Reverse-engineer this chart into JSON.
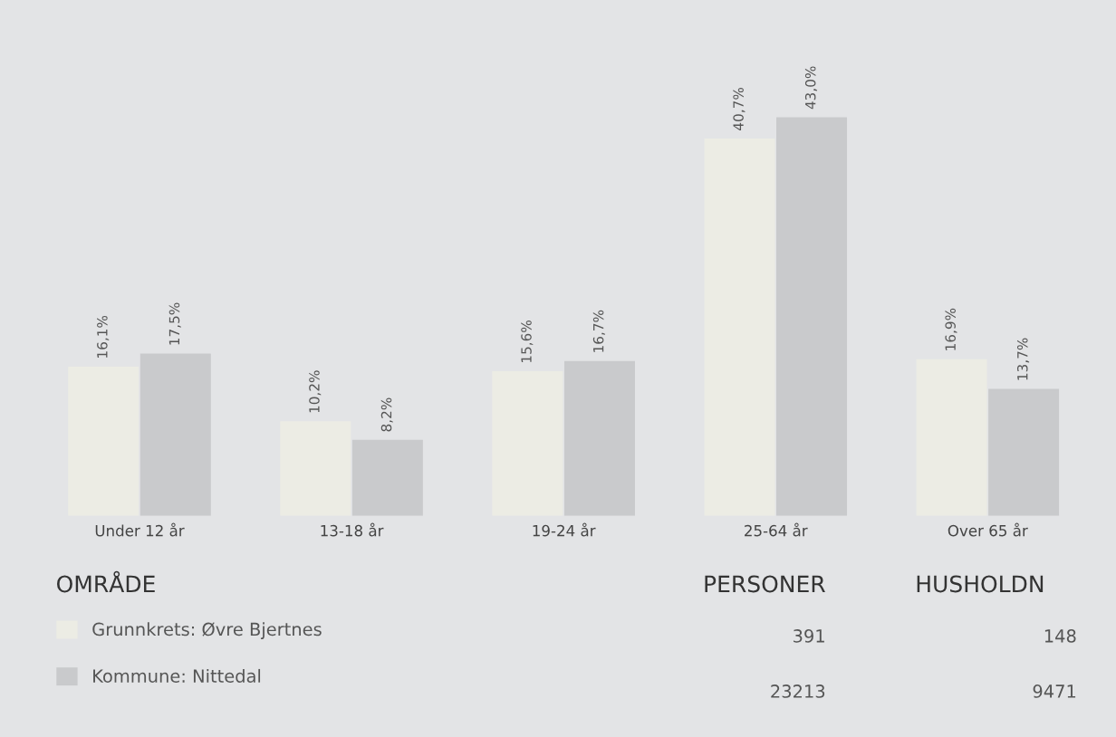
{
  "chart_data": {
    "type": "bar",
    "categories": [
      "Under 12 år",
      "13-18 år",
      "19-24 år",
      "25-64 år",
      "Over 65 år"
    ],
    "series": [
      {
        "name": "Grunnkrets: Øvre Bjertnes",
        "color": "#ecece4",
        "values": [
          16.1,
          10.2,
          15.6,
          40.7,
          16.9
        ],
        "value_labels": [
          "16,1%",
          "10,2%",
          "15,6%",
          "40,7%",
          "16,9%"
        ]
      },
      {
        "name": "Kommune: Nittedal",
        "color": "#c9cacc",
        "values": [
          17.5,
          8.2,
          16.7,
          43.0,
          13.7
        ],
        "value_labels": [
          "17,5%",
          "8,2%",
          "16,7%",
          "43,0%",
          "13,7%"
        ]
      }
    ],
    "legend": "bottom left",
    "grid": false,
    "annotations": [
      "OMRÅDE",
      "PERSONER",
      "HUSHOLDN",
      "391",
      "148",
      "23213",
      "9471"
    ]
  }
}
